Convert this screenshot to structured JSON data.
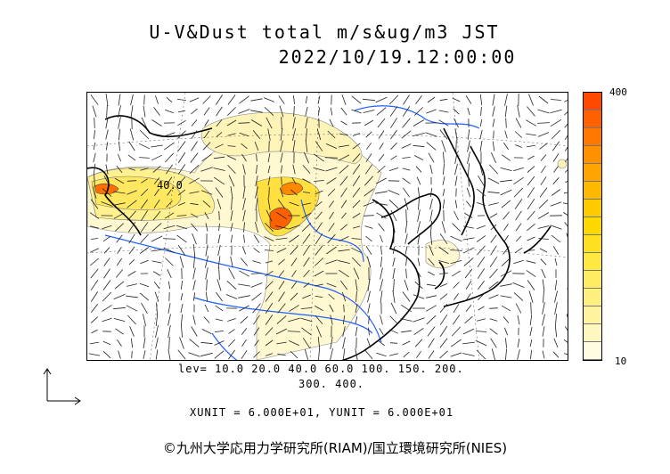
{
  "header": {
    "title": "U-V&Dust total m/s&ug/m3 JST",
    "datetime": "2022/10/19.12:00:00"
  },
  "colorbar": {
    "max_label": "400",
    "min_label": "10",
    "colors": [
      "#fffbe0",
      "#fff7c0",
      "#fff3a0",
      "#fff080",
      "#ffec60",
      "#ffe840",
      "#ffe020",
      "#ffd800",
      "#ffcc00",
      "#ffb800",
      "#ffa400",
      "#ff9000",
      "#ff7800",
      "#ff6000",
      "#ff4800"
    ]
  },
  "legend": {
    "levels_line1": "lev= 10.0 20.0 40.0 60.0 100. 150. 200.",
    "levels_line2": "300. 400.",
    "units_line": "XUNIT = 6.000E+01, YUNIT = 6.000E+01"
  },
  "map": {
    "contour_label": "40.0"
  },
  "credit": "©九州大学応用力学研究所(RIAM)/国立環境研究所(NIES)"
}
